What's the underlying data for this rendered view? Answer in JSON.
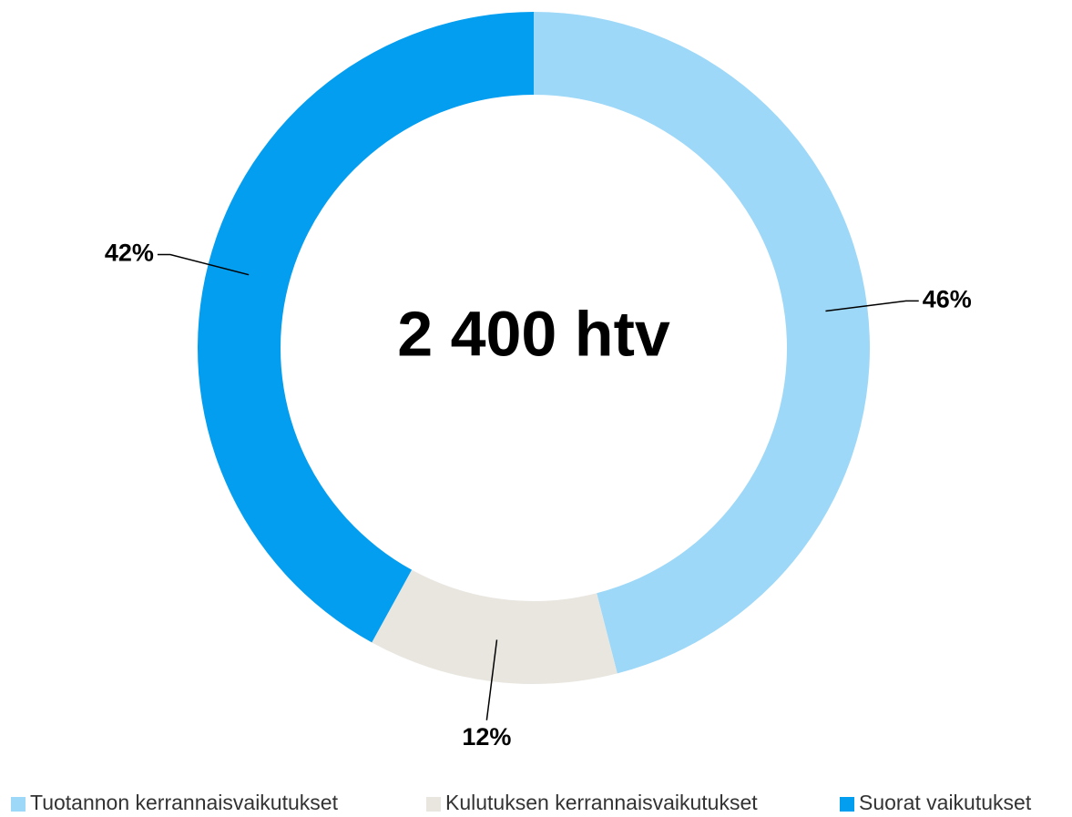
{
  "chart_data": {
    "type": "pie",
    "categories": [
      "Tuotannon kerrannaisvaikutukset",
      "Kulutuksen kerrannaisvaikutukset",
      "Suorat vaikutukset"
    ],
    "values": [
      46,
      12,
      42
    ],
    "value_labels": [
      "46%",
      "12%",
      "42%"
    ],
    "colors": [
      "#9dd8f8",
      "#e9e6e0",
      "#049ef0"
    ],
    "center_label": "2 400 htv",
    "legend": "bottom"
  }
}
